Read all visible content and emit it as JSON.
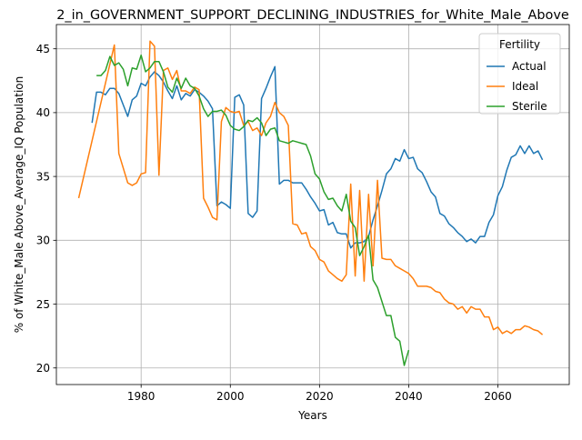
{
  "chart_data": {
    "type": "line",
    "title": "2_in_GOVERNMENT_SUPPORT_DECLINING_INDUSTRIES_for_White_Male_Above",
    "xlabel": "Years",
    "ylabel": "% of White_Male Above_Average_IQ Population",
    "xlim": [
      1961,
      2076
    ],
    "ylim": [
      18.7,
      46.9
    ],
    "xticks": [
      1980,
      2000,
      2020,
      2040,
      2060
    ],
    "yticks": [
      20,
      25,
      30,
      35,
      40,
      45
    ],
    "grid": true,
    "legend": {
      "title": "Fertility",
      "position": "top-right"
    },
    "series": [
      {
        "name": "Actual",
        "color": "#1f77b4",
        "x": [
          1969,
          1970,
          1971,
          1972,
          1973,
          1974,
          1975,
          1976,
          1977,
          1978,
          1979,
          1980,
          1981,
          1982,
          1983,
          1984,
          1985,
          1986,
          1987,
          1988,
          1989,
          1990,
          1991,
          1992,
          1993,
          1994,
          1995,
          1996,
          1997,
          1998,
          1999,
          2000,
          2001,
          2002,
          2003,
          2004,
          2005,
          2006,
          2007,
          2008,
          2009,
          2010,
          2011,
          2012,
          2013,
          2014,
          2015,
          2016,
          2017,
          2018,
          2019,
          2020,
          2021,
          2022,
          2023,
          2024,
          2025,
          2026,
          2027,
          2028,
          2029,
          2030,
          2031,
          2032,
          2033,
          2034,
          2035,
          2036,
          2037,
          2038,
          2039,
          2040,
          2041,
          2042,
          2043,
          2044,
          2045,
          2046,
          2047,
          2048,
          2049,
          2050,
          2051,
          2052,
          2053,
          2054,
          2055,
          2056,
          2057,
          2058,
          2059,
          2060,
          2061,
          2062,
          2063,
          2064,
          2065,
          2066,
          2067,
          2068,
          2069,
          2070
        ],
        "values": [
          39.2,
          41.6,
          41.6,
          41.4,
          41.9,
          41.9,
          41.5,
          40.6,
          39.7,
          41.0,
          41.3,
          42.3,
          42.1,
          42.8,
          43.2,
          42.9,
          42.4,
          41.7,
          41.1,
          42.1,
          41.0,
          41.5,
          41.3,
          41.8,
          41.6,
          41.3,
          40.9,
          40.3,
          32.7,
          33.0,
          32.8,
          32.5,
          41.2,
          41.4,
          40.6,
          32.1,
          31.8,
          32.3,
          41.1,
          41.9,
          42.8,
          43.6,
          34.4,
          34.7,
          34.7,
          34.5,
          34.5,
          34.5,
          34.0,
          33.4,
          32.9,
          32.3,
          32.4,
          31.2,
          31.4,
          30.6,
          30.5,
          30.5,
          29.4,
          29.8,
          29.8,
          29.9,
          30.3,
          31.6,
          32.7,
          33.9,
          35.2,
          35.6,
          36.4,
          36.2,
          37.1,
          36.4,
          36.5,
          35.6,
          35.3,
          34.6,
          33.8,
          33.4,
          32.1,
          31.9,
          31.3,
          31.0,
          30.6,
          30.3,
          29.9,
          30.1,
          29.8,
          30.3,
          30.3,
          31.4,
          32.0,
          33.5,
          34.2,
          35.5,
          36.5,
          36.7,
          37.4,
          36.8,
          37.4,
          36.8,
          37.0,
          36.3
        ]
      },
      {
        "name": "Ideal",
        "color": "#ff7f0e",
        "x": [
          1966,
          1974,
          1975,
          1977,
          1978,
          1979,
          1980,
          1981,
          1982,
          1983,
          1984,
          1985,
          1986,
          1987,
          1988,
          1989,
          1990,
          1991,
          1992,
          1993,
          1994,
          1995,
          1996,
          1997,
          1998,
          1999,
          2000,
          2001,
          2002,
          2003,
          2004,
          2005,
          2006,
          2007,
          2008,
          2009,
          2010,
          2011,
          2012,
          2013,
          2014,
          2015,
          2016,
          2017,
          2018,
          2019,
          2020,
          2021,
          2022,
          2023,
          2024,
          2025,
          2026,
          2027,
          2028,
          2029,
          2030,
          2031,
          2032,
          2033,
          2034,
          2035,
          2036,
          2037,
          2038,
          2039,
          2040,
          2041,
          2042,
          2043,
          2044,
          2045,
          2046,
          2047,
          2048,
          2049,
          2050,
          2051,
          2052,
          2053,
          2054,
          2055,
          2056,
          2057,
          2058,
          2059,
          2060,
          2061,
          2062,
          2063,
          2064,
          2065,
          2066,
          2067,
          2068,
          2069,
          2070
        ],
        "values": [
          33.3,
          45.3,
          36.8,
          34.5,
          34.3,
          34.5,
          35.2,
          35.3,
          45.6,
          45.2,
          35.1,
          43.3,
          43.5,
          42.6,
          43.3,
          41.7,
          41.7,
          41.5,
          42.0,
          41.8,
          33.3,
          32.6,
          31.8,
          31.6,
          39.3,
          40.4,
          40.1,
          40.0,
          40.1,
          39.0,
          39.3,
          38.6,
          38.8,
          38.2,
          39.2,
          39.7,
          40.8,
          40.0,
          39.7,
          39.0,
          31.3,
          31.2,
          30.5,
          30.6,
          29.5,
          29.2,
          28.5,
          28.3,
          27.6,
          27.3,
          27.0,
          26.8,
          27.3,
          34.4,
          27.2,
          33.9,
          26.8,
          33.6,
          28.0,
          34.7,
          28.6,
          28.5,
          28.5,
          28.0,
          27.8,
          27.6,
          27.4,
          27.0,
          26.4,
          26.4,
          26.4,
          26.3,
          26.0,
          25.9,
          25.4,
          25.1,
          25.0,
          24.6,
          24.8,
          24.3,
          24.8,
          24.6,
          24.6,
          24.0,
          24.0,
          23.0,
          23.2,
          22.7,
          22.9,
          22.7,
          23.0,
          23.0,
          23.3,
          23.2,
          23.0,
          22.9,
          22.6
        ]
      },
      {
        "name": "Sterile",
        "color": "#2ca02c",
        "x": [
          1970,
          1971,
          1972,
          1973,
          1974,
          1975,
          1976,
          1977,
          1978,
          1979,
          1980,
          1981,
          1982,
          1983,
          1984,
          1985,
          1986,
          1987,
          1988,
          1989,
          1990,
          1991,
          1992,
          1993,
          1994,
          1995,
          1996,
          1997,
          1998,
          1999,
          2000,
          2001,
          2002,
          2003,
          2004,
          2005,
          2006,
          2007,
          2008,
          2009,
          2010,
          2011,
          2012,
          2013,
          2014,
          2015,
          2016,
          2017,
          2018,
          2019,
          2020,
          2021,
          2022,
          2023,
          2024,
          2025,
          2026,
          2027,
          2028,
          2029,
          2030,
          2031,
          2032,
          2033,
          2034,
          2035,
          2036,
          2037,
          2038,
          2039,
          2040
        ],
        "values": [
          42.9,
          42.9,
          43.3,
          44.4,
          43.7,
          43.9,
          43.4,
          42.1,
          43.5,
          43.4,
          44.5,
          43.2,
          43.5,
          44.0,
          44.0,
          43.2,
          42.0,
          41.6,
          42.7,
          41.9,
          42.7,
          42.1,
          41.9,
          41.3,
          40.3,
          39.7,
          40.1,
          40.1,
          40.2,
          39.8,
          39.0,
          38.7,
          38.6,
          38.9,
          39.4,
          39.3,
          39.6,
          39.2,
          38.2,
          38.7,
          38.8,
          37.8,
          37.7,
          37.6,
          37.8,
          37.7,
          37.6,
          37.5,
          36.6,
          35.2,
          34.8,
          33.8,
          33.2,
          33.3,
          32.7,
          32.3,
          33.6,
          31.5,
          31.0,
          28.8,
          29.5,
          30.4,
          26.9,
          26.3,
          25.2,
          24.1,
          24.1,
          22.4,
          22.1,
          20.2,
          21.4
        ]
      }
    ]
  }
}
